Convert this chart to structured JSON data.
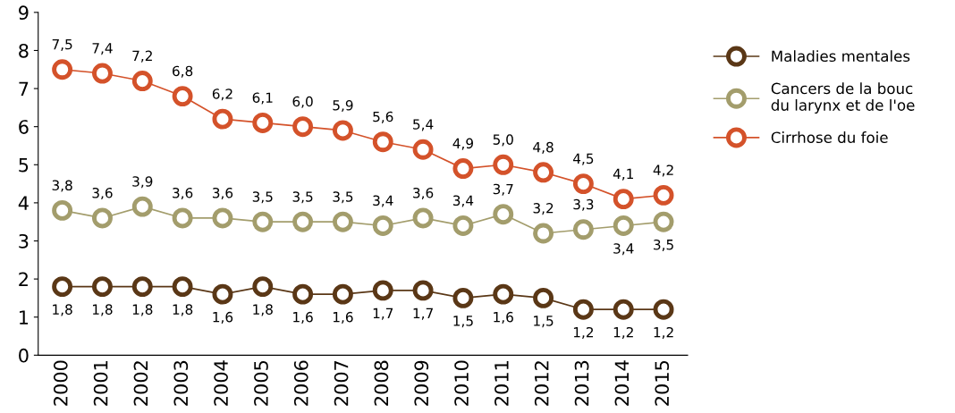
{
  "chart_data": {
    "type": "line",
    "categories": [
      "2000",
      "2001",
      "2002",
      "2003",
      "2004",
      "2005",
      "2006",
      "2007",
      "2008",
      "2009",
      "2010",
      "2011",
      "2012",
      "2013",
      "2014",
      "2015"
    ],
    "series": [
      {
        "name": "Maladies mentales",
        "color": "#5a3716",
        "values": [
          1.8,
          1.8,
          1.8,
          1.8,
          1.6,
          1.8,
          1.6,
          1.6,
          1.7,
          1.7,
          1.5,
          1.6,
          1.5,
          1.2,
          1.2,
          1.2
        ],
        "value_labels": [
          "1,8",
          "1,8",
          "1,8",
          "1,8",
          "1,6",
          "1,8",
          "1,6",
          "1,6",
          "1,7",
          "1,7",
          "1,5",
          "1,6",
          "1,5",
          "1,2",
          "1,2",
          "1,2"
        ]
      },
      {
        "name": "Cancers de la bouc\ndu larynx et de l'oe",
        "color": "#a39d6c",
        "values": [
          3.8,
          3.6,
          3.9,
          3.6,
          3.6,
          3.5,
          3.5,
          3.5,
          3.4,
          3.6,
          3.4,
          3.7,
          3.2,
          3.3,
          3.4,
          3.5
        ],
        "value_labels": [
          "3,8",
          "3,6",
          "3,9",
          "3,6",
          "3,6",
          "3,5",
          "3,5",
          "3,5",
          "3,4",
          "3,6",
          "3,4",
          "3,7",
          "3,2",
          "3,3",
          "3,4",
          "3,5"
        ]
      },
      {
        "name": "Cirrhose du foie",
        "color": "#d4522a",
        "values": [
          7.5,
          7.4,
          7.2,
          6.8,
          6.2,
          6.1,
          6.0,
          5.9,
          5.6,
          5.4,
          4.9,
          5.0,
          4.8,
          4.5,
          4.1,
          4.2
        ],
        "value_labels": [
          "7,5",
          "7,4",
          "7,2",
          "6,8",
          "6,2",
          "6,1",
          "6,0",
          "5,9",
          "5,6",
          "5,4",
          "4,9",
          "5,0",
          "4,8",
          "4,5",
          "4,1",
          "4,2"
        ]
      }
    ],
    "ylim": [
      0,
      9
    ],
    "yticks": [
      0,
      1,
      2,
      3,
      4,
      5,
      6,
      7,
      8,
      9
    ],
    "grid": false,
    "legend": "right",
    "marker": "circle",
    "line_style": "solid"
  }
}
